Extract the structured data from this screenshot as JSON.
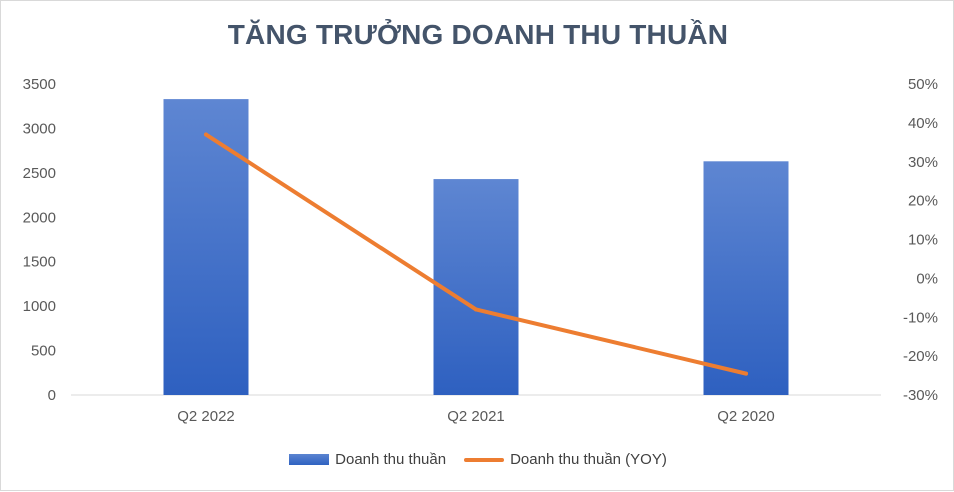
{
  "chart_data": {
    "type": "bar",
    "title": "TĂNG TRƯỞNG DOANH THU THUẦN",
    "categories": [
      "Q2 2022",
      "Q2 2021",
      "Q2 2020"
    ],
    "series": [
      {
        "name": "Doanh thu thuần",
        "type": "bar",
        "axis": "left",
        "values": [
          3330,
          2430,
          2630
        ],
        "color": "#3d6fcc"
      },
      {
        "name": "Doanh thu thuần (YOY)",
        "type": "line",
        "axis": "right",
        "values": [
          37.0,
          -8.0,
          -24.5
        ],
        "color": "#ed7d31"
      }
    ],
    "y_left": {
      "range": [
        0,
        3500
      ],
      "ticks": [
        "0",
        "500",
        "1000",
        "1500",
        "2000",
        "2500",
        "3000",
        "3500"
      ]
    },
    "y_right": {
      "range": [
        -30,
        50
      ],
      "unit": "%",
      "ticks": [
        "-30%",
        "-20%",
        "-10%",
        "0%",
        "10%",
        "20%",
        "30%",
        "40%",
        "50%"
      ]
    },
    "grid": false,
    "legend_position": "bottom"
  }
}
